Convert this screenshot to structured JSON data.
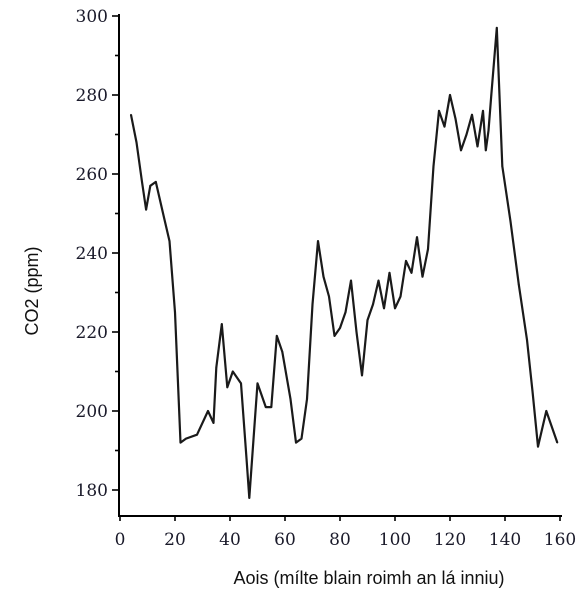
{
  "chart_data": {
    "type": "line",
    "title": "",
    "xlabel": "Aois (mílte blain roimh an lá inniu)",
    "ylabel": "CO2  (ppm)",
    "xlim": [
      0,
      160
    ],
    "ylim": [
      180,
      300
    ],
    "x_ticks": [
      0,
      20,
      40,
      60,
      80,
      100,
      120,
      140,
      160
    ],
    "y_ticks": [
      180,
      200,
      220,
      240,
      260,
      280,
      300
    ],
    "grid": false,
    "legend": "none",
    "series": [
      {
        "color": "#1a1a1a",
        "x": [
          4,
          6,
          8,
          9.5,
          11,
          13,
          16,
          18,
          20,
          22,
          24,
          28,
          32,
          34,
          35,
          37,
          39,
          41,
          44,
          46,
          47,
          50,
          53,
          55,
          57,
          59,
          62,
          64,
          66,
          68,
          70,
          72,
          74,
          76,
          78,
          80,
          82,
          84,
          86,
          88,
          90,
          92,
          94,
          96,
          98,
          100,
          102,
          104,
          106,
          108,
          110,
          112,
          114,
          116,
          118,
          120,
          122,
          124,
          126,
          128,
          130,
          132,
          133,
          134,
          135,
          137,
          139,
          142,
          145,
          148,
          150,
          152,
          155,
          159
        ],
        "y": [
          275,
          268,
          258,
          251,
          257,
          258,
          249,
          243,
          225,
          192,
          193,
          194,
          200,
          197,
          211,
          222,
          206,
          210,
          207,
          188,
          178,
          207,
          201,
          201,
          219,
          215,
          203,
          192,
          193,
          203,
          227,
          243,
          234,
          229,
          219,
          221,
          225,
          233,
          220,
          209,
          223,
          227,
          233,
          226,
          235,
          226,
          229,
          238,
          235,
          244,
          234,
          241,
          262,
          276,
          272,
          280,
          274,
          266,
          270,
          275,
          267,
          276,
          266,
          271,
          280,
          297,
          262,
          248,
          232,
          218,
          205,
          191,
          200,
          192
        ]
      }
    ]
  }
}
